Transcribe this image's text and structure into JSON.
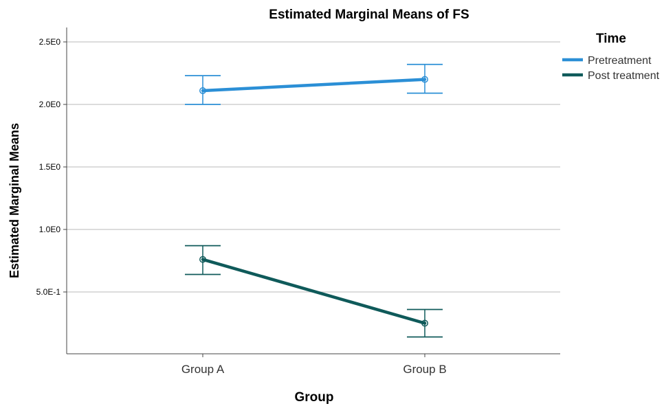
{
  "chart_data": {
    "type": "line",
    "title": "Estimated Marginal Means of FS",
    "xlabel": "Group",
    "ylabel": "Estimated Marginal Means",
    "categories": [
      "Group A",
      "Group B"
    ],
    "y_ticks": [
      {
        "value": 0.5,
        "label": "5.0E-1"
      },
      {
        "value": 1.0,
        "label": "1.0E0"
      },
      {
        "value": 1.5,
        "label": "1.5E0"
      },
      {
        "value": 2.0,
        "label": "2.0E0"
      },
      {
        "value": 2.5,
        "label": "2.5E0"
      }
    ],
    "ylim": [
      0.0,
      2.6
    ],
    "grid": true,
    "legend": {
      "title": "Time",
      "position": "top-right"
    },
    "series": [
      {
        "name": "Pretreatment",
        "color": "#2b8fd6",
        "values": [
          2.11,
          2.2
        ],
        "error_low": [
          2.0,
          2.09
        ],
        "error_high": [
          2.23,
          2.32
        ]
      },
      {
        "name": "Post treatment",
        "color": "#0f5a5a",
        "values": [
          0.76,
          0.25
        ],
        "error_low": [
          0.64,
          0.14
        ],
        "error_high": [
          0.87,
          0.36
        ]
      }
    ]
  }
}
